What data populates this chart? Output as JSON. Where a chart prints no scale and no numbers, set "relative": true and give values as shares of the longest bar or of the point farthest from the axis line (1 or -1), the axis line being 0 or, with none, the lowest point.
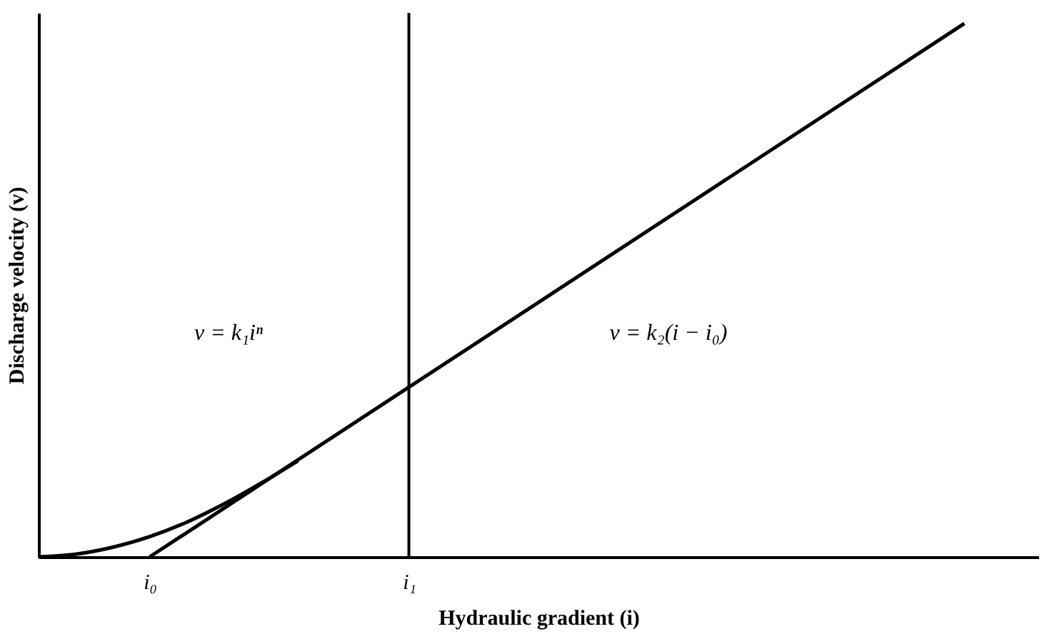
{
  "chart_data": {
    "type": "line",
    "relative": true,
    "xlabel": "Hydraulic gradient (i)",
    "ylabel": "Discharge velocity (v)",
    "categories": [
      null,
      null,
      null,
      "i₀",
      null,
      null,
      null,
      null,
      null,
      null,
      "i₁",
      null,
      null,
      null,
      null,
      null,
      null,
      null,
      null,
      null,
      null,
      null,
      null,
      null,
      null,
      null,
      null,
      null
    ],
    "series": [
      {
        "color": "#000000",
        "values": [
          0,
          0.005,
          0.018,
          0.038,
          0.065,
          0.099,
          0.138,
          0.18,
          null,
          null,
          null,
          null,
          null,
          null,
          null,
          null,
          null,
          null,
          null,
          null,
          null,
          null,
          null,
          null,
          null,
          null,
          null,
          null
        ]
      },
      {
        "color": "#000000",
        "values": [
          null,
          null,
          null,
          0,
          null,
          null,
          null,
          null,
          null,
          null,
          null,
          null,
          null,
          null,
          null,
          null,
          null,
          null,
          null,
          null,
          null,
          null,
          null,
          null,
          null,
          1,
          null,
          null
        ]
      }
    ],
    "ref_lines": [
      {
        "axis": "x",
        "value": "i₁",
        "color": "#000000"
      }
    ],
    "annotations": [
      "v = k₁iⁿ",
      "v = k₂(i − i₀)"
    ],
    "grid": false,
    "legend": false,
    "marker": "none",
    "line_style": "solid"
  }
}
